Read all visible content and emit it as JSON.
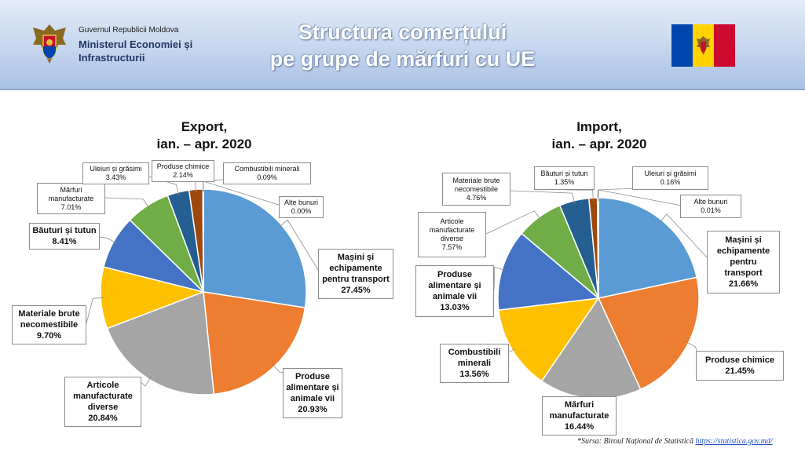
{
  "header": {
    "government": "Guvernul Republicii Moldova",
    "ministry": "Ministerul Economiei și Infrastructurii",
    "title_line1": "Structura comerțului",
    "title_line2": "pe grupe de mărfuri cu UE"
  },
  "source": {
    "label": "*Sursa: Biroul Național de Statistică",
    "link": "https://statistica.gov.md/"
  },
  "colors": {
    "blue": "#5b9bd5",
    "orange": "#ed7d31",
    "gray": "#a5a5a5",
    "gold": "#ffc000",
    "darkblue": "#4472c4",
    "green": "#70ad47",
    "navy": "#255e91",
    "brown": "#9e480e"
  },
  "chart_data": [
    {
      "type": "pie",
      "title_line1": "Export,",
      "title_line2": "ian. – apr. 2020",
      "slices": [
        {
          "name": "Mașini și echipamente pentru transport",
          "value": 27.45,
          "label": "27.45%",
          "color": "#5b9bd5"
        },
        {
          "name": "Produse alimentare și animale vii",
          "value": 20.93,
          "label": "20.93%",
          "color": "#ed7d31"
        },
        {
          "name": "Articole manufacturate diverse",
          "value": 20.84,
          "label": "20.84%",
          "color": "#a5a5a5"
        },
        {
          "name": "Materiale brute necomestibile",
          "value": 9.7,
          "label": "9.70%",
          "color": "#ffc000"
        },
        {
          "name": "Băuturi și tutun",
          "value": 8.41,
          "label": "8.41%",
          "color": "#4472c4"
        },
        {
          "name": "Mărfuri manufacturate",
          "value": 7.01,
          "label": "7.01%",
          "color": "#70ad47"
        },
        {
          "name": "Uleiuri și grăsimi",
          "value": 3.43,
          "label": "3.43%",
          "color": "#255e91"
        },
        {
          "name": "Produse chimice",
          "value": 2.14,
          "label": "2.14%",
          "color": "#9e480e"
        },
        {
          "name": "Combustibili minerali",
          "value": 0.09,
          "label": "0.09%",
          "color": "#636363"
        },
        {
          "name": "Alte bunuri",
          "value": 0.0,
          "label": "0.00%",
          "color": "#997300"
        }
      ]
    },
    {
      "type": "pie",
      "title_line1": "Import,",
      "title_line2": "ian. – apr. 2020",
      "slices": [
        {
          "name": "Mașini și echipamente pentru transport",
          "value": 21.66,
          "label": "21.66%",
          "color": "#5b9bd5"
        },
        {
          "name": "Produse chimice",
          "value": 21.45,
          "label": "21.45%",
          "color": "#ed7d31"
        },
        {
          "name": "Mărfuri manufacturate",
          "value": 16.44,
          "label": "16.44%",
          "color": "#a5a5a5"
        },
        {
          "name": "Combustibili minerali",
          "value": 13.56,
          "label": "13.56%",
          "color": "#ffc000"
        },
        {
          "name": "Produse alimentare și animale vii",
          "value": 13.03,
          "label": "13.03%",
          "color": "#4472c4"
        },
        {
          "name": "Articole manufacturate diverse",
          "value": 7.57,
          "label": "7.57%",
          "color": "#70ad47"
        },
        {
          "name": "Materiale brute necomestibile",
          "value": 4.76,
          "label": "4.76%",
          "color": "#255e91"
        },
        {
          "name": "Băuturi și tutun",
          "value": 1.35,
          "label": "1.35%",
          "color": "#9e480e"
        },
        {
          "name": "Uleiuri și grăsimi",
          "value": 0.16,
          "label": "0.16%",
          "color": "#636363"
        },
        {
          "name": "Alte bunuri",
          "value": 0.01,
          "label": "0.01%",
          "color": "#997300"
        }
      ]
    }
  ]
}
